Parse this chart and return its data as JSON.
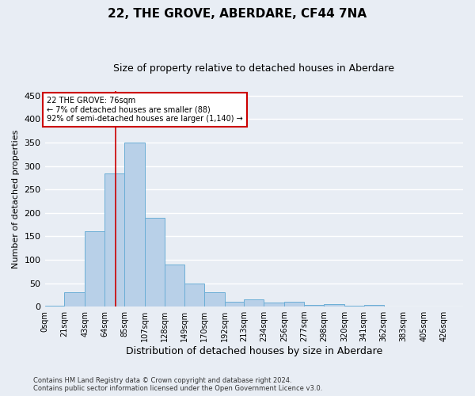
{
  "title": "22, THE GROVE, ABERDARE, CF44 7NA",
  "subtitle": "Size of property relative to detached houses in Aberdare",
  "xlabel": "Distribution of detached houses by size in Aberdare",
  "ylabel": "Number of detached properties",
  "footer_line1": "Contains HM Land Registry data © Crown copyright and database right 2024.",
  "footer_line2": "Contains public sector information licensed under the Open Government Licence v3.0.",
  "bar_labels": [
    "0sqm",
    "21sqm",
    "43sqm",
    "64sqm",
    "85sqm",
    "107sqm",
    "128sqm",
    "149sqm",
    "170sqm",
    "192sqm",
    "213sqm",
    "234sqm",
    "256sqm",
    "277sqm",
    "298sqm",
    "320sqm",
    "341sqm",
    "362sqm",
    "383sqm",
    "405sqm",
    "426sqm"
  ],
  "bar_heights": [
    2,
    30,
    160,
    285,
    350,
    190,
    90,
    50,
    30,
    10,
    15,
    8,
    10,
    4,
    5,
    1,
    4,
    0,
    0,
    0,
    0
  ],
  "bar_color": "#b8d0e8",
  "bar_edge_color": "#6baed6",
  "background_color": "#e8edf4",
  "grid_color": "#ffffff",
  "annotation_text": "22 THE GROVE: 76sqm\n← 7% of detached houses are smaller (88)\n92% of semi-detached houses are larger (1,140) →",
  "annotation_box_color": "#ffffff",
  "annotation_border_color": "#cc0000",
  "red_line_x": 76,
  "red_line_color": "#cc0000",
  "ylim": [
    0,
    460
  ],
  "xlim_max": 447,
  "left_edges": [
    0,
    21,
    43,
    64,
    85,
    107,
    128,
    149,
    170,
    192,
    213,
    234,
    256,
    277,
    298,
    320,
    341,
    362,
    383,
    405,
    426
  ],
  "title_fontsize": 11,
  "subtitle_fontsize": 9,
  "tick_fontsize": 7,
  "ylabel_fontsize": 8,
  "xlabel_fontsize": 9,
  "annotation_fontsize": 7,
  "footer_fontsize": 6
}
